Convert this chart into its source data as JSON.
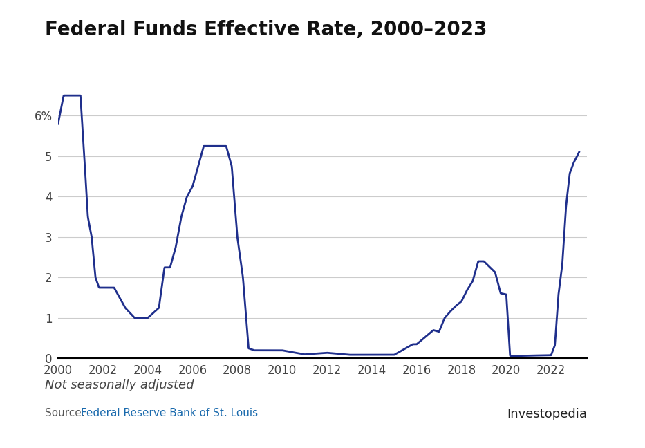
{
  "title": "Federal Funds Effective Rate, 2000–2023",
  "note": "Not seasonally adjusted",
  "source_prefix": "Source: ",
  "source_link": "Federal Reserve Bank of St. Louis",
  "source_link_color": "#1a6aad",
  "background_color": "#ffffff",
  "line_color": "#1f2f8c",
  "line_width": 2.0,
  "xlim": [
    2000,
    2023.6
  ],
  "ylim": [
    0,
    7.2
  ],
  "xticks": [
    2000,
    2002,
    2004,
    2006,
    2008,
    2010,
    2012,
    2014,
    2016,
    2018,
    2020,
    2022
  ],
  "yticks": [
    0,
    1,
    2,
    3,
    4,
    5,
    6
  ],
  "ytick_labels": [
    "0",
    "1",
    "2",
    "3",
    "4",
    "5",
    "6%"
  ],
  "grid_color": "#cccccc",
  "axis_color": "#000000",
  "title_fontsize": 20,
  "tick_fontsize": 12,
  "note_fontsize": 13,
  "source_fontsize": 11,
  "x_data": [
    2000.0,
    2000.25,
    2000.5,
    2000.75,
    2001.0,
    2001.17,
    2001.33,
    2001.5,
    2001.67,
    2001.83,
    2002.0,
    2002.5,
    2003.0,
    2003.42,
    2003.75,
    2004.0,
    2004.5,
    2004.75,
    2005.0,
    2005.25,
    2005.5,
    2005.75,
    2006.0,
    2006.25,
    2006.5,
    2006.75,
    2007.0,
    2007.5,
    2007.75,
    2008.0,
    2008.25,
    2008.5,
    2008.75,
    2009.0,
    2009.25,
    2010.0,
    2011.0,
    2012.0,
    2013.0,
    2014.0,
    2015.0,
    2015.83,
    2016.0,
    2016.75,
    2017.0,
    2017.25,
    2017.5,
    2017.75,
    2018.0,
    2018.25,
    2018.5,
    2018.75,
    2019.0,
    2019.5,
    2019.75,
    2020.0,
    2020.17,
    2020.33,
    2021.0,
    2022.0,
    2022.17,
    2022.33,
    2022.5,
    2022.67,
    2022.83,
    2023.0,
    2023.25
  ],
  "y_data": [
    5.8,
    6.5,
    6.5,
    6.5,
    6.5,
    5.0,
    3.5,
    3.0,
    2.0,
    1.75,
    1.75,
    1.75,
    1.25,
    1.0,
    1.0,
    1.0,
    1.25,
    2.25,
    2.25,
    2.75,
    3.5,
    4.0,
    4.25,
    4.75,
    5.25,
    5.25,
    5.25,
    5.25,
    4.75,
    3.0,
    2.0,
    0.25,
    0.2,
    0.2,
    0.2,
    0.2,
    0.1,
    0.14,
    0.09,
    0.09,
    0.09,
    0.35,
    0.35,
    0.7,
    0.66,
    1.0,
    1.16,
    1.3,
    1.41,
    1.69,
    1.91,
    2.4,
    2.4,
    2.13,
    1.61,
    1.58,
    0.06,
    0.06,
    0.07,
    0.08,
    0.33,
    1.58,
    2.33,
    3.78,
    4.57,
    4.83,
    5.1
  ]
}
